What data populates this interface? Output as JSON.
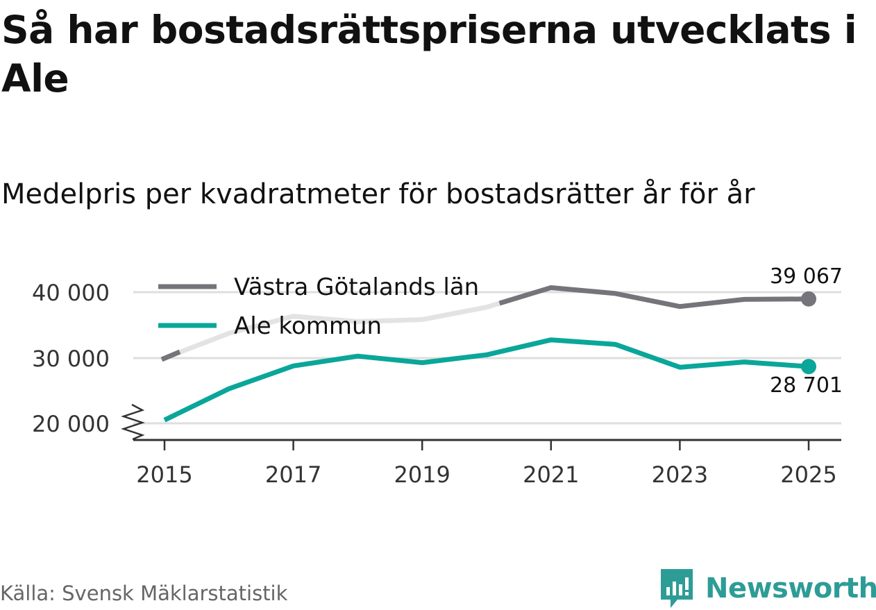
{
  "title": "Så har bostadsrättspriserna utvecklats i Ale",
  "subtitle": "Medelpris per kvadratmeter för bostadsrätter år för år",
  "source": "Källa: Svensk Mäklarstatistik",
  "brand": {
    "name": "Newsworthy",
    "icon": "newsworthy-logo-icon"
  },
  "colors": {
    "lan": "#74747a",
    "lan_early": "#e3e3e3",
    "ale": "#0aa69a",
    "grid": "#dedede",
    "axis": "#333333",
    "brand": "#2e9c96"
  },
  "chart_data": {
    "type": "line",
    "x": [
      2015,
      2016,
      2017,
      2018,
      2019,
      2020,
      2021,
      2022,
      2023,
      2024,
      2025
    ],
    "xticks": [
      "2015",
      "2017",
      "2019",
      "2021",
      "2023",
      "2025"
    ],
    "yticks": [
      "20 000",
      "30 000",
      "40 000"
    ],
    "ylim": [
      17500,
      42000
    ],
    "axis_break": true,
    "series": [
      {
        "name": "Västra Götalands län",
        "values": [
          30000,
          33800,
          36400,
          35600,
          35900,
          37800,
          40800,
          39900,
          37900,
          39000,
          39067
        ],
        "highlight_from": 2020.2,
        "end_label": "39 067"
      },
      {
        "name": "Ale kommun",
        "values": [
          20500,
          25300,
          28800,
          30300,
          29300,
          30500,
          32800,
          32100,
          28600,
          29400,
          28701
        ],
        "end_label": "28 701"
      }
    ]
  }
}
